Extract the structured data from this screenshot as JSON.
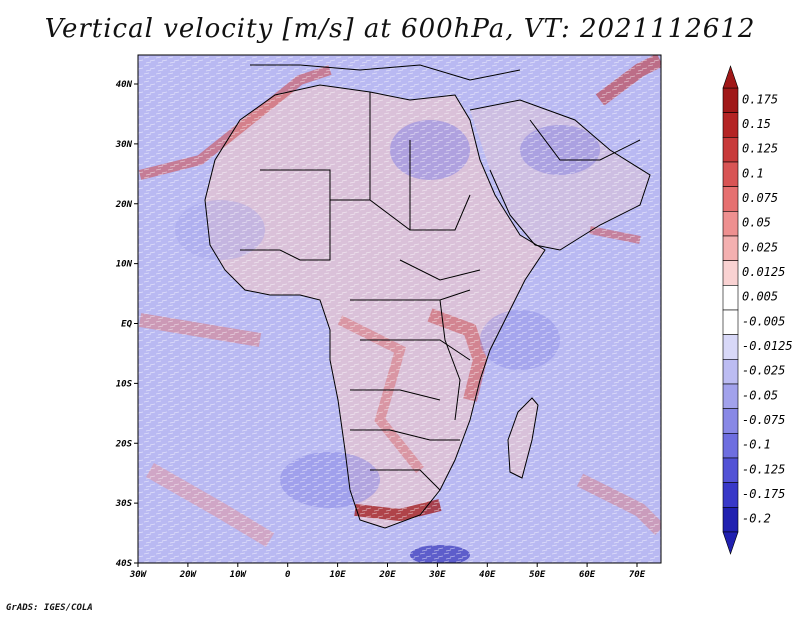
{
  "title": "Vertical velocity [m/s] at 600hPa, VT: 2021112612",
  "credit": "GrADS: IGES/COLA",
  "map": {
    "lat_labels": [
      "40N",
      "30N",
      "20N",
      "10N",
      "EQ",
      "10S",
      "20S",
      "30S",
      "40S"
    ],
    "lon_labels": [
      "30W",
      "20W",
      "10W",
      "0",
      "10E",
      "20E",
      "30E",
      "40E",
      "50E",
      "60E",
      "70E"
    ],
    "ocean_color": "#b9b9f2",
    "land_tint": "#e9c6d2"
  },
  "legend": {
    "labels": [
      "0.175",
      "0.15",
      "0.125",
      "0.1",
      "0.075",
      "0.05",
      "0.025",
      "0.0125",
      "0.005",
      "-0.005",
      "-0.0125",
      "-0.025",
      "-0.05",
      "-0.075",
      "-0.1",
      "-0.125",
      "-0.175",
      "-0.2"
    ],
    "colors": [
      "#a01818",
      "#b42424",
      "#c83a3a",
      "#d85454",
      "#e67070",
      "#ee9090",
      "#f4b0b0",
      "#f9d2d2",
      "#ffffff",
      "#ffffff",
      "#d8d8f8",
      "#bcbcf2",
      "#a2a2ec",
      "#8888e6",
      "#6e6ee0",
      "#5252d6",
      "#3838c8",
      "#2020b0"
    ]
  }
}
